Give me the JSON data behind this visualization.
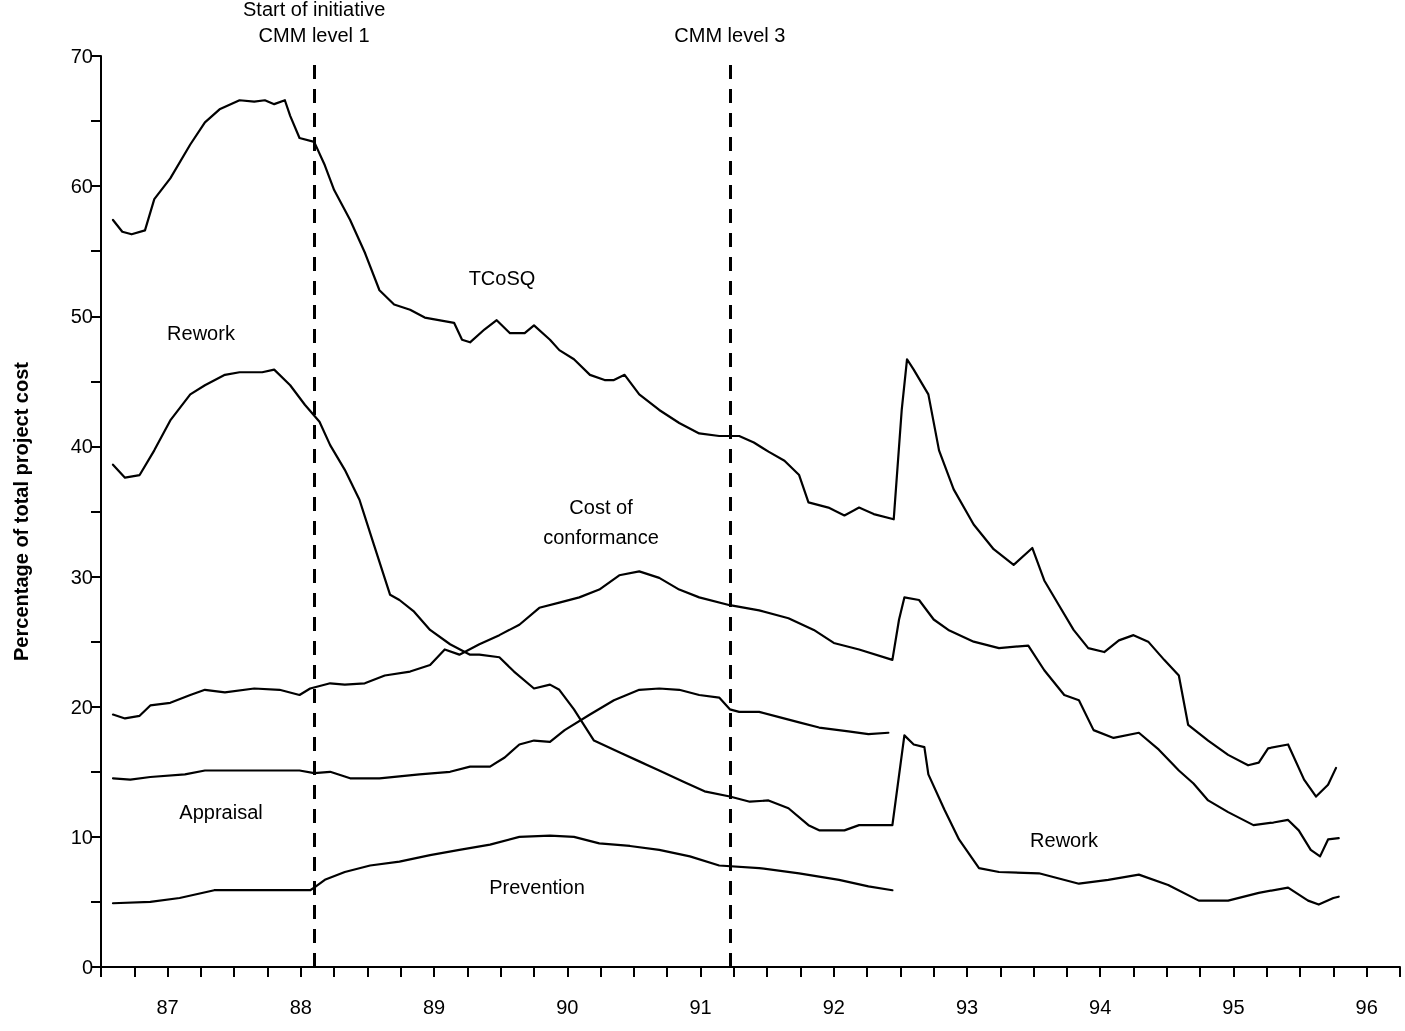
{
  "chart_data": {
    "type": "line",
    "ylabel": "Percentage of total project cost",
    "xlim": [
      87,
      96.75
    ],
    "xticks": [
      {
        "value": 87,
        "label": null
      },
      {
        "value": 87.25,
        "label": null
      },
      {
        "value": 87.5,
        "label": "87"
      },
      {
        "value": 87.75,
        "label": null
      },
      {
        "value": 88,
        "label": null
      },
      {
        "value": 88.25,
        "label": null
      },
      {
        "value": 88.5,
        "label": "88"
      },
      {
        "value": 88.75,
        "label": null
      },
      {
        "value": 89,
        "label": null
      },
      {
        "value": 89.25,
        "label": null
      },
      {
        "value": 89.5,
        "label": "89"
      },
      {
        "value": 89.75,
        "label": null
      },
      {
        "value": 90,
        "label": null
      },
      {
        "value": 90.25,
        "label": null
      },
      {
        "value": 90.5,
        "label": "90"
      },
      {
        "value": 90.75,
        "label": null
      },
      {
        "value": 91,
        "label": null
      },
      {
        "value": 91.25,
        "label": null
      },
      {
        "value": 91.5,
        "label": "91"
      },
      {
        "value": 91.75,
        "label": null
      },
      {
        "value": 92,
        "label": null
      },
      {
        "value": 92.25,
        "label": null
      },
      {
        "value": 92.5,
        "label": "92"
      },
      {
        "value": 92.75,
        "label": null
      },
      {
        "value": 93,
        "label": null
      },
      {
        "value": 93.25,
        "label": null
      },
      {
        "value": 93.5,
        "label": "93"
      },
      {
        "value": 93.75,
        "label": null
      },
      {
        "value": 94,
        "label": null
      },
      {
        "value": 94.25,
        "label": null
      },
      {
        "value": 94.5,
        "label": "94"
      },
      {
        "value": 94.75,
        "label": null
      },
      {
        "value": 95,
        "label": null
      },
      {
        "value": 95.25,
        "label": null
      },
      {
        "value": 95.5,
        "label": "95"
      },
      {
        "value": 95.75,
        "label": null
      },
      {
        "value": 96,
        "label": null
      },
      {
        "value": 96.25,
        "label": null
      },
      {
        "value": 96.5,
        "label": "96"
      },
      {
        "value": 96.75,
        "label": null
      }
    ],
    "ylim": [
      0,
      70
    ],
    "yticks": [
      0,
      {
        "value": 5,
        "label": null
      },
      10,
      {
        "value": 15,
        "label": null
      },
      20,
      {
        "value": 25,
        "label": null
      },
      30,
      {
        "value": 35,
        "label": null
      },
      40,
      {
        "value": 45,
        "label": null
      },
      50,
      {
        "value": 55,
        "label": null
      },
      60,
      {
        "value": 65,
        "label": null
      },
      70
    ],
    "grid": false,
    "marker": "none",
    "line_style": "solid",
    "series": [
      {
        "name": "TCoSQ",
        "color": "#000000",
        "x": [
          87.09,
          87.16,
          87.23,
          87.33,
          87.4,
          87.52,
          87.67,
          87.78,
          87.89,
          88.04,
          88.15,
          88.23,
          88.3,
          88.38,
          88.42,
          88.49,
          88.6,
          88.68,
          88.75,
          88.87,
          88.98,
          89.09,
          89.2,
          89.32,
          89.43,
          89.65,
          89.71,
          89.77,
          89.88,
          89.97,
          90.07,
          90.18,
          90.25,
          90.37,
          90.44,
          90.55,
          90.67,
          90.78,
          90.85,
          90.93,
          91.04,
          91.19,
          91.34,
          91.49,
          91.64,
          91.79,
          91.9,
          92.01,
          92.13,
          92.24,
          92.31,
          92.46,
          92.58,
          92.69,
          92.8,
          92.95,
          93.01,
          93.05,
          93.1,
          93.21,
          93.29,
          93.4,
          93.55,
          93.7,
          93.85,
          93.99,
          94.08,
          94.19,
          94.3,
          94.41,
          94.53,
          94.64,
          94.75,
          94.86,
          94.98,
          95.09,
          95.16,
          95.31,
          95.46,
          95.61,
          95.69,
          95.76,
          95.91,
          96.03,
          96.12,
          96.21,
          96.27
        ],
        "values": [
          57.4,
          56.5,
          56.3,
          56.6,
          59.0,
          60.6,
          63.2,
          64.9,
          65.9,
          66.6,
          66.5,
          66.6,
          66.3,
          66.6,
          65.4,
          63.7,
          63.4,
          61.6,
          59.7,
          57.4,
          54.9,
          52.0,
          50.9,
          50.5,
          49.9,
          49.5,
          48.2,
          48.0,
          49.0,
          49.7,
          48.7,
          48.7,
          49.3,
          48.2,
          47.4,
          46.7,
          45.5,
          45.1,
          45.1,
          45.5,
          44.0,
          42.8,
          41.8,
          41.0,
          40.8,
          40.8,
          40.3,
          39.6,
          38.9,
          37.8,
          35.7,
          35.3,
          34.7,
          35.3,
          34.8,
          34.4,
          42.8,
          46.7,
          45.9,
          44.0,
          39.7,
          36.7,
          34.0,
          32.1,
          30.9,
          32.2,
          29.7,
          27.8,
          25.9,
          24.5,
          24.2,
          25.1,
          25.5,
          25.0,
          23.6,
          22.4,
          18.6,
          17.4,
          16.3,
          15.5,
          15.7,
          16.8,
          17.1,
          14.4,
          13.1,
          14.0,
          15.3
        ]
      },
      {
        "name": "Rework",
        "color": "#000000",
        "x": [
          87.09,
          87.18,
          87.29,
          87.4,
          87.52,
          87.67,
          87.78,
          87.93,
          88.04,
          88.21,
          88.3,
          88.42,
          88.53,
          88.64,
          88.72,
          88.83,
          88.94,
          89.05,
          89.17,
          89.24,
          89.35,
          89.47,
          89.62,
          89.77,
          89.84,
          89.99,
          90.1,
          90.25,
          90.37,
          90.44,
          90.55,
          90.7,
          90.89,
          91.04,
          91.19,
          91.38,
          91.53,
          91.72,
          91.87,
          92.01,
          92.16,
          92.31,
          92.39,
          92.58,
          92.69,
          92.94,
          93.03,
          93.1,
          93.18,
          93.21,
          93.33,
          93.44,
          93.59,
          93.74,
          94.04,
          94.34,
          94.56,
          94.79,
          95.01,
          95.24,
          95.46,
          95.69,
          95.91,
          96.06,
          96.14,
          96.25,
          96.29
        ],
        "values": [
          38.6,
          37.6,
          37.8,
          39.7,
          42.0,
          44.0,
          44.7,
          45.5,
          45.7,
          45.7,
          45.9,
          44.7,
          43.2,
          41.9,
          40.1,
          38.2,
          35.9,
          32.4,
          28.6,
          28.2,
          27.3,
          25.9,
          24.8,
          24.0,
          24.0,
          23.8,
          22.7,
          21.4,
          21.7,
          21.3,
          19.8,
          17.4,
          16.5,
          15.8,
          15.1,
          14.2,
          13.5,
          13.1,
          12.7,
          12.8,
          12.2,
          10.9,
          10.5,
          10.5,
          10.9,
          10.9,
          17.8,
          17.1,
          16.9,
          14.8,
          12.1,
          9.8,
          7.6,
          7.3,
          7.2,
          6.4,
          6.7,
          7.1,
          6.3,
          5.1,
          5.1,
          5.7,
          6.1,
          5.1,
          4.8,
          5.3,
          5.4
        ]
      },
      {
        "name": "Cost of\nconformance",
        "color": "#000000",
        "x": [
          87.09,
          87.18,
          87.29,
          87.37,
          87.52,
          87.67,
          87.78,
          87.93,
          88.15,
          88.34,
          88.49,
          88.57,
          88.72,
          88.83,
          88.98,
          89.13,
          89.32,
          89.47,
          89.58,
          89.69,
          89.84,
          89.99,
          90.14,
          90.29,
          90.44,
          90.59,
          90.74,
          90.89,
          91.04,
          91.19,
          91.34,
          91.49,
          91.72,
          91.94,
          92.16,
          92.35,
          92.5,
          92.69,
          92.94,
          92.99,
          93.03,
          93.14,
          93.25,
          93.36,
          93.55,
          93.74,
          93.96,
          94.08,
          94.23,
          94.34,
          94.45,
          94.6,
          94.79,
          94.94,
          95.09,
          95.2,
          95.31,
          95.46,
          95.65,
          95.8,
          95.91,
          95.99,
          96.08,
          96.15,
          96.21,
          96.29
        ],
        "values": [
          19.4,
          19.1,
          19.3,
          20.1,
          20.3,
          20.9,
          21.3,
          21.1,
          21.4,
          21.3,
          20.9,
          21.4,
          21.8,
          21.7,
          21.8,
          22.4,
          22.7,
          23.2,
          24.4,
          24.0,
          24.8,
          25.5,
          26.3,
          27.6,
          28.0,
          28.4,
          29.0,
          30.1,
          30.4,
          29.9,
          29.0,
          28.4,
          27.8,
          27.4,
          26.8,
          25.9,
          24.9,
          24.4,
          23.6,
          26.7,
          28.4,
          28.2,
          26.7,
          25.9,
          25.0,
          24.5,
          24.7,
          22.8,
          20.9,
          20.5,
          18.2,
          17.6,
          18.0,
          16.7,
          15.1,
          14.1,
          12.8,
          11.9,
          10.9,
          11.1,
          11.3,
          10.5,
          9.0,
          8.5,
          9.8,
          9.9
        ]
      },
      {
        "name": "Appraisal",
        "color": "#000000",
        "x": [
          87.09,
          87.22,
          87.37,
          87.63,
          87.78,
          88.04,
          88.27,
          88.49,
          88.6,
          88.72,
          88.87,
          89.09,
          89.39,
          89.62,
          89.77,
          89.92,
          90.03,
          90.14,
          90.25,
          90.37,
          90.48,
          90.67,
          90.85,
          91.04,
          91.19,
          91.34,
          91.49,
          91.64,
          91.72,
          91.79,
          91.94,
          92.09,
          92.24,
          92.39,
          92.61,
          92.76,
          92.91
        ],
        "values": [
          14.5,
          14.4,
          14.6,
          14.8,
          15.1,
          15.1,
          15.1,
          15.1,
          14.9,
          15.0,
          14.5,
          14.5,
          14.8,
          15.0,
          15.4,
          15.4,
          16.1,
          17.1,
          17.4,
          17.3,
          18.2,
          19.4,
          20.5,
          21.3,
          21.4,
          21.3,
          20.9,
          20.7,
          19.8,
          19.6,
          19.6,
          19.2,
          18.8,
          18.4,
          18.1,
          17.9,
          18.0
        ]
      },
      {
        "name": "Prevention",
        "color": "#000000",
        "x": [
          87.09,
          87.37,
          87.59,
          87.85,
          88.04,
          88.27,
          88.57,
          88.6,
          88.68,
          88.83,
          89.02,
          89.24,
          89.47,
          89.69,
          89.92,
          90.14,
          90.37,
          90.55,
          90.74,
          90.97,
          91.19,
          91.42,
          91.64,
          91.94,
          92.24,
          92.54,
          92.76,
          92.94
        ],
        "values": [
          4.9,
          5.0,
          5.3,
          5.9,
          5.9,
          5.9,
          5.9,
          6.1,
          6.7,
          7.3,
          7.8,
          8.1,
          8.6,
          9.0,
          9.4,
          10.0,
          10.1,
          10.0,
          9.5,
          9.3,
          9.0,
          8.5,
          7.8,
          7.6,
          7.2,
          6.7,
          6.2,
          5.9
        ]
      }
    ],
    "ref_lines": [
      {
        "axis": "x",
        "value": 88.6,
        "label": "Start of initiative\nCMM level 1",
        "line_style": "dashed"
      },
      {
        "axis": "x",
        "value": 91.72,
        "label": "CMM level 3",
        "line_style": "dashed"
      }
    ]
  }
}
